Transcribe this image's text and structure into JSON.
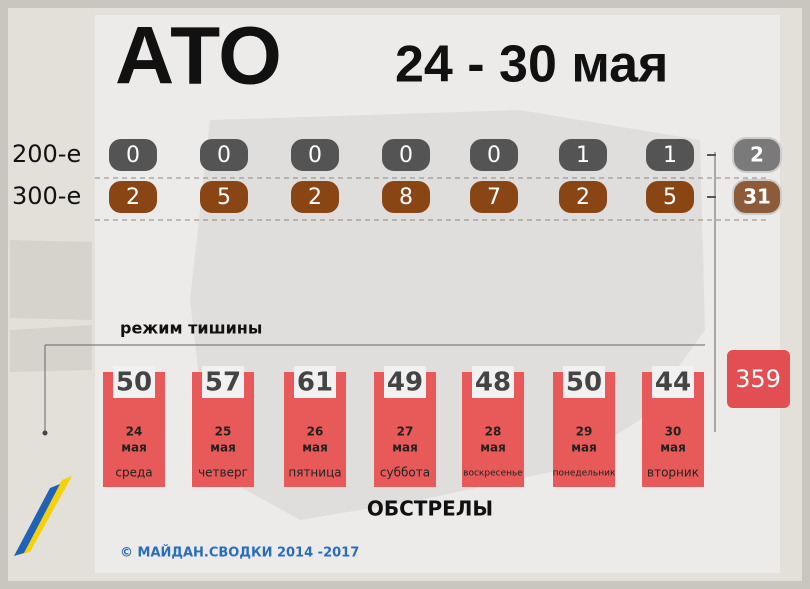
{
  "header": {
    "title": "АТО",
    "period": "24 - 30 мая"
  },
  "casualties": {
    "rows": [
      {
        "label": "200-е",
        "values": [
          0,
          0,
          0,
          0,
          0,
          1,
          1
        ],
        "total": 2
      },
      {
        "label": "300-е",
        "values": [
          2,
          5,
          2,
          8,
          7,
          2,
          5
        ],
        "total": 31
      }
    ]
  },
  "ceasefire_label": "режим тишины",
  "shelling": {
    "label": "ОБСТРЕЛЫ",
    "total": 359,
    "days": [
      {
        "value": 50,
        "day": "24",
        "month": "мая",
        "weekday": "среда"
      },
      {
        "value": 57,
        "day": "25",
        "month": "мая",
        "weekday": "четверг"
      },
      {
        "value": 61,
        "day": "26",
        "month": "мая",
        "weekday": "пятница"
      },
      {
        "value": 49,
        "day": "27",
        "month": "мая",
        "weekday": "суббота"
      },
      {
        "value": 48,
        "day": "28",
        "month": "мая",
        "weekday": "воскресенье"
      },
      {
        "value": 50,
        "day": "29",
        "month": "мая",
        "weekday": "понедельник"
      },
      {
        "value": 44,
        "day": "30",
        "month": "мая",
        "weekday": "вторник"
      }
    ]
  },
  "footer": "© МАЙДАН.СВОДКИ 2014 -2017"
}
